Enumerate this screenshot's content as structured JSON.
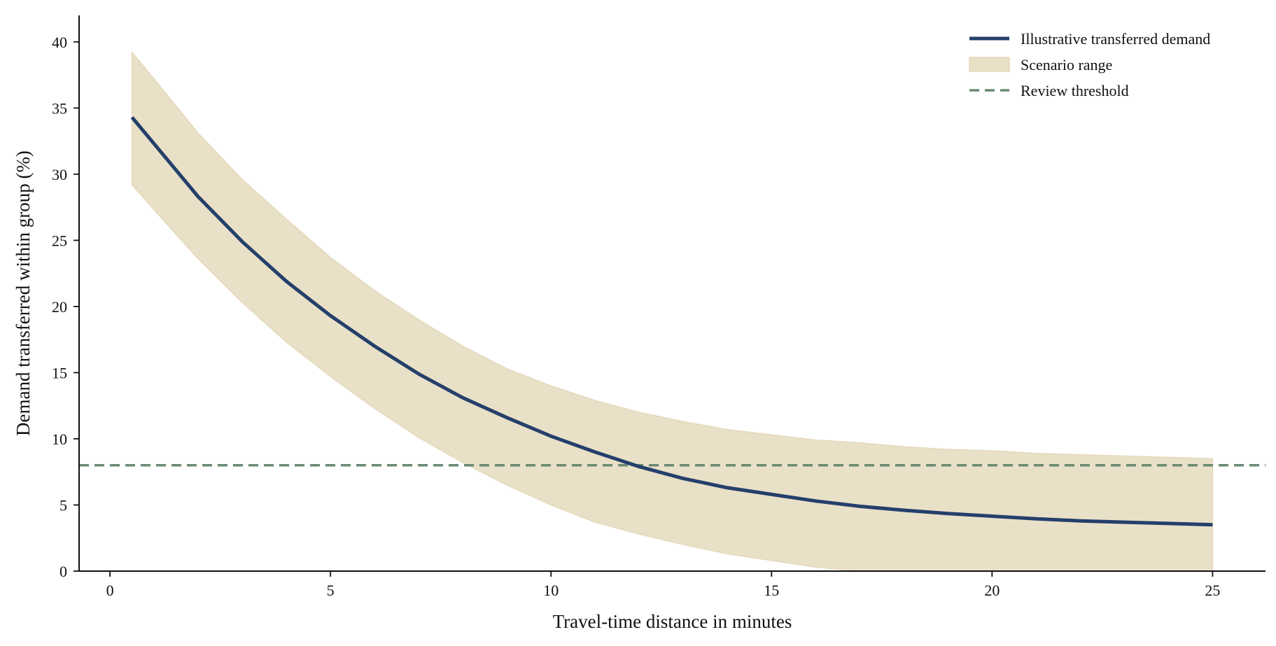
{
  "chart_data": {
    "type": "line",
    "title": "",
    "xlabel": "Travel-time distance in minutes",
    "ylabel": "Demand transferred within group (%)",
    "xlim": [
      -0.7,
      26.2
    ],
    "ylim": [
      0,
      42
    ],
    "xticks": [
      0,
      5,
      10,
      15,
      20,
      25
    ],
    "yticks": [
      0,
      5,
      10,
      15,
      20,
      25,
      30,
      35,
      40
    ],
    "grid": false,
    "legend_position": "top-right",
    "series": [
      {
        "name": "Illustrative transferred demand",
        "kind": "line",
        "color": "#243f6a",
        "x": [
          0.5,
          1,
          2,
          3,
          4,
          5,
          6,
          7,
          8,
          9,
          10,
          11,
          12,
          13,
          14,
          15,
          16,
          17,
          18,
          19,
          20,
          21,
          22,
          23,
          24,
          25
        ],
        "y": [
          34.3,
          32.3,
          28.3,
          24.9,
          21.9,
          19.3,
          17.0,
          14.9,
          13.1,
          11.6,
          10.2,
          9.0,
          7.9,
          7.0,
          6.3,
          5.8,
          5.3,
          4.9,
          4.6,
          4.35,
          4.15,
          3.95,
          3.8,
          3.7,
          3.6,
          3.5
        ]
      },
      {
        "name": "Scenario range",
        "kind": "band",
        "color": "#e9e0c8",
        "x": [
          0.5,
          1,
          2,
          3,
          4,
          5,
          6,
          7,
          8,
          9,
          10,
          11,
          12,
          13,
          14,
          15,
          16,
          17,
          18,
          19,
          20,
          21,
          22,
          23,
          24,
          25
        ],
        "lower": [
          29.2,
          27.3,
          23.6,
          20.3,
          17.3,
          14.7,
          12.3,
          10.1,
          8.2,
          6.5,
          5.0,
          3.7,
          2.8,
          2.0,
          1.3,
          0.8,
          0.3,
          0.0,
          0.0,
          0.0,
          0.0,
          0.0,
          0.0,
          0.0,
          0.0,
          0.0
        ],
        "upper": [
          39.2,
          37.2,
          33.1,
          29.6,
          26.6,
          23.7,
          21.2,
          19.0,
          17.0,
          15.3,
          14.0,
          12.9,
          12.0,
          11.3,
          10.7,
          10.3,
          9.9,
          9.7,
          9.4,
          9.2,
          9.1,
          8.9,
          8.8,
          8.7,
          8.6,
          8.5
        ]
      },
      {
        "name": "Review threshold",
        "kind": "hline",
        "color": "#6b8a73",
        "y": 8
      }
    ]
  }
}
